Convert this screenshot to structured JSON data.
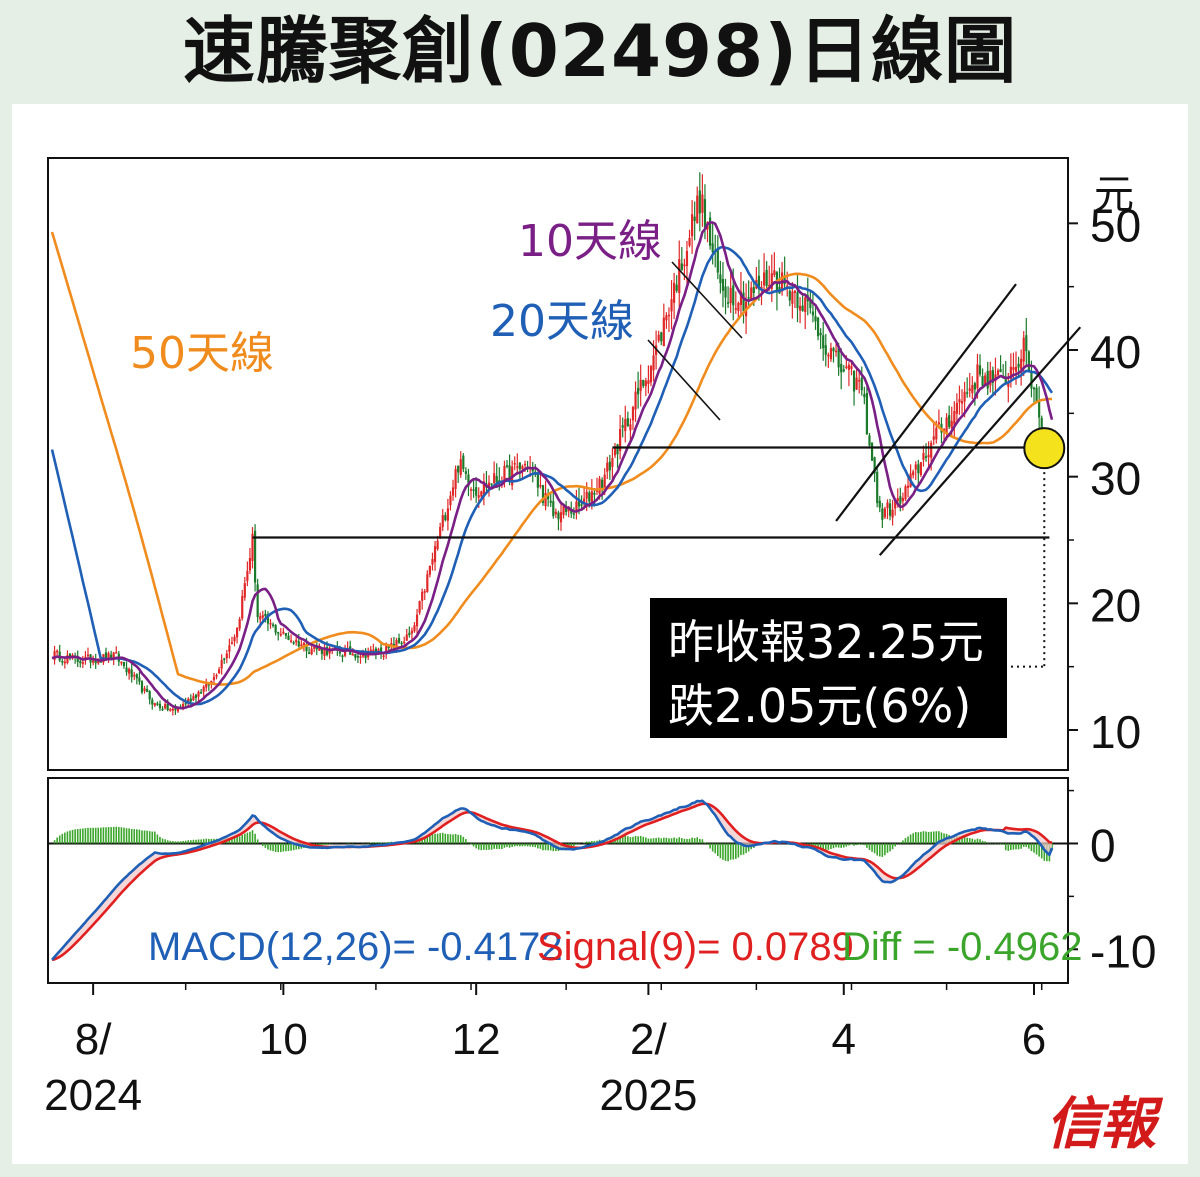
{
  "title": "速騰聚創(02498)日線圖",
  "logo": "信報",
  "colors": {
    "up": "#e02828",
    "down": "#1a7a2a",
    "ma10": "#7a1f86",
    "ma20": "#1f5fb5",
    "ma50": "#f08c1e",
    "macd": "#1f5fb5",
    "signal": "#e02020",
    "diff": "#3aa52a",
    "marker": "#f3e21c"
  },
  "chart_data": [
    {
      "type": "candlestick",
      "title": "速騰聚創(02498)日線圖",
      "ylabel": "元",
      "ylim": [
        7,
        55
      ],
      "yticks": [
        10,
        20,
        30,
        40,
        50
      ],
      "xticks": [
        {
          "line1": "8/",
          "line2": "2024"
        },
        {
          "line1": "10",
          "line2": ""
        },
        {
          "line1": "12",
          "line2": ""
        },
        {
          "line1": "2/",
          "line2": "2025"
        },
        {
          "line1": "4",
          "line2": ""
        },
        {
          "line1": "6",
          "line2": ""
        }
      ],
      "series_labels": {
        "ma10": "10天線",
        "ma20": "20天線",
        "ma50": "50天線"
      },
      "key_points": [
        [
          0,
          16
        ],
        [
          10,
          15.5
        ],
        [
          25,
          15.8
        ],
        [
          40,
          12
        ],
        [
          48,
          11.5
        ],
        [
          62,
          13.8
        ],
        [
          72,
          18
        ],
        [
          78,
          25
        ],
        [
          80,
          19
        ],
        [
          90,
          17.5
        ],
        [
          100,
          16.5
        ],
        [
          110,
          16.2
        ],
        [
          120,
          16.0
        ],
        [
          130,
          16.3
        ],
        [
          140,
          17.5
        ],
        [
          150,
          25
        ],
        [
          158,
          31
        ],
        [
          165,
          29
        ],
        [
          175,
          30
        ],
        [
          185,
          31
        ],
        [
          195,
          27
        ],
        [
          205,
          27.5
        ],
        [
          215,
          30
        ],
        [
          225,
          35
        ],
        [
          235,
          40
        ],
        [
          245,
          47
        ],
        [
          252,
          52
        ],
        [
          260,
          45
        ],
        [
          270,
          44
        ],
        [
          280,
          46
        ],
        [
          292,
          44
        ],
        [
          305,
          39
        ],
        [
          315,
          37
        ],
        [
          322,
          27
        ],
        [
          330,
          28
        ],
        [
          340,
          32
        ],
        [
          350,
          35
        ],
        [
          360,
          38
        ],
        [
          370,
          37.5
        ],
        [
          378,
          40
        ],
        [
          384,
          35.2
        ],
        [
          386,
          32.25
        ]
      ],
      "ma50_start": 50,
      "ma20_start": 33,
      "support_line": 25.2,
      "resistance_line": 32.3,
      "last_close": 32.25,
      "channel": {
        "lower": {
          "from": [
            322,
            23.8
          ],
          "to": [
            400,
            41.8
          ]
        },
        "upper": {
          "from": [
            305,
            26.5
          ],
          "to": [
            375,
            45.2
          ]
        }
      },
      "annotation": {
        "line1": "昨收報32.25元",
        "line2": "跌2.05元(6%)"
      }
    },
    {
      "type": "macd",
      "ylim": [
        -13,
        6
      ],
      "yticks": [
        0,
        -10
      ],
      "macd_label": "MACD(12,26)= -0.4172",
      "signal_label": "Signal(9)= 0.0789",
      "diff_label": "Diff = -0.4962",
      "macd_value": -0.4172,
      "signal_value": 0.0789,
      "diff_value": -0.4962
    }
  ]
}
